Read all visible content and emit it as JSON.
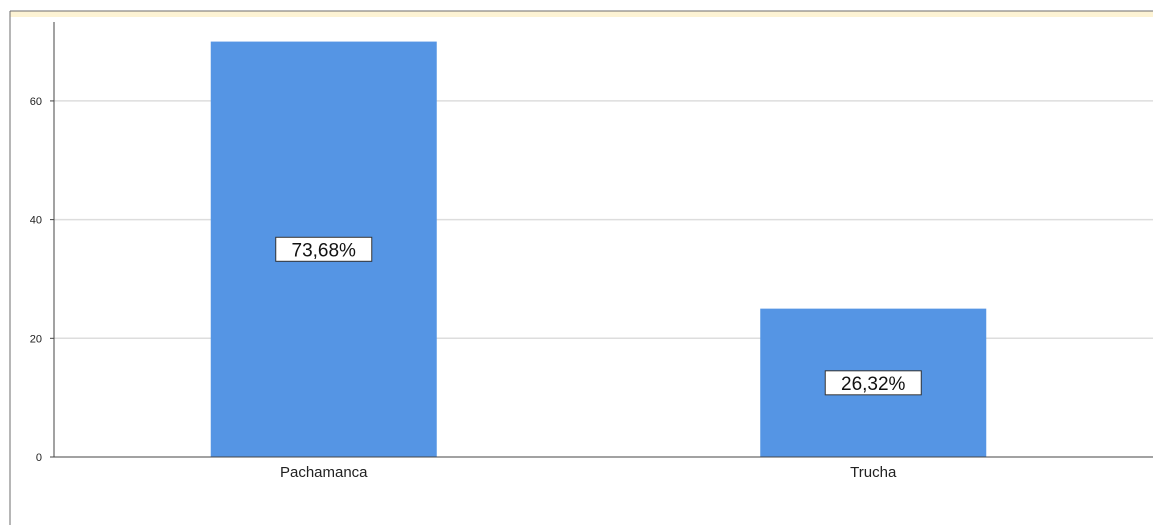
{
  "chart_data": {
    "type": "bar",
    "title": "",
    "xlabel": "",
    "ylabel": "",
    "categories": [
      "Pachamanca",
      "Trucha"
    ],
    "values": [
      70,
      25
    ],
    "data_labels": [
      "73,68%",
      "26,32%"
    ],
    "ylim": [
      0,
      73.3
    ],
    "yticks": [
      0,
      20,
      40,
      60
    ],
    "ytick_labels": [
      "0",
      "20",
      "40",
      "60"
    ],
    "grid": true,
    "bar_color": "#5595e4",
    "gridline_color": "#dddddd",
    "top_band_color": "#fdf3d4"
  }
}
